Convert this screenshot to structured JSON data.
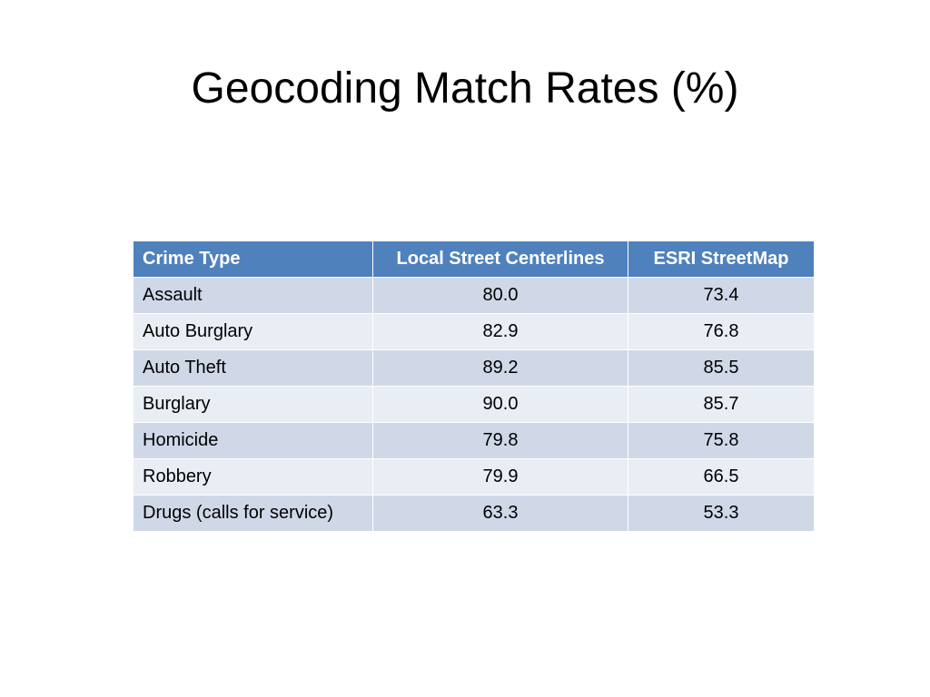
{
  "slide": {
    "title": "Geocoding Match Rates (%)"
  },
  "table": {
    "headers": [
      "Crime Type",
      "Local Street Centerlines",
      "ESRI StreetMap"
    ],
    "rows": [
      [
        "Assault",
        "80.0",
        "73.4"
      ],
      [
        "Auto Burglary",
        "82.9",
        "76.8"
      ],
      [
        "Auto Theft",
        "89.2",
        "85.5"
      ],
      [
        "Burglary",
        "90.0",
        "85.7"
      ],
      [
        "Homicide",
        "79.8",
        "75.8"
      ],
      [
        "Robbery",
        "79.9",
        "66.5"
      ],
      [
        "Drugs (calls for service)",
        "63.3",
        "53.3"
      ]
    ]
  },
  "colors": {
    "header_bg": "#4f81bd",
    "row_odd_bg": "#d0d8e8",
    "row_even_bg": "#e9edf4"
  }
}
